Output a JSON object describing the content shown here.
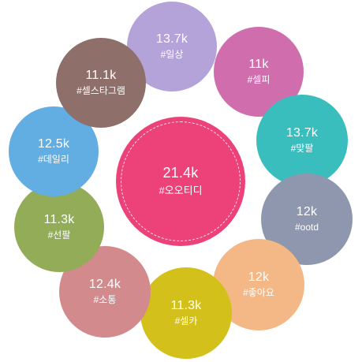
{
  "chart_data": {
    "type": "bubble",
    "center": {
      "count": "21.4k",
      "tag": "#오오티디",
      "value": 21400,
      "color": "#ec4279"
    },
    "items": [
      {
        "count": "13.7k",
        "tag": "#일상",
        "value": 13700,
        "color": "#b3a3d9"
      },
      {
        "count": "11k",
        "tag": "#셀피",
        "value": 11000,
        "color": "#d06ead"
      },
      {
        "count": "13.7k",
        "tag": "#맞팔",
        "value": 13700,
        "color": "#39bdbd"
      },
      {
        "count": "12k",
        "tag": "#ootd",
        "value": 12000,
        "color": "#8e97ad"
      },
      {
        "count": "12k",
        "tag": "#좋아요",
        "value": 12000,
        "color": "#f4b886"
      },
      {
        "count": "11.3k",
        "tag": "#셀카",
        "value": 11300,
        "color": "#d4c01a"
      },
      {
        "count": "12.4k",
        "tag": "#소통",
        "value": 12400,
        "color": "#d38a8c"
      },
      {
        "count": "11.3k",
        "tag": "#선팔",
        "value": 11300,
        "color": "#92ac58"
      },
      {
        "count": "12.5k",
        "tag": "#데일리",
        "value": 12500,
        "color": "#62ade2"
      },
      {
        "count": "11.1k",
        "tag": "#셀스타그램",
        "value": 11100,
        "color": "#8e6f6a"
      }
    ]
  }
}
